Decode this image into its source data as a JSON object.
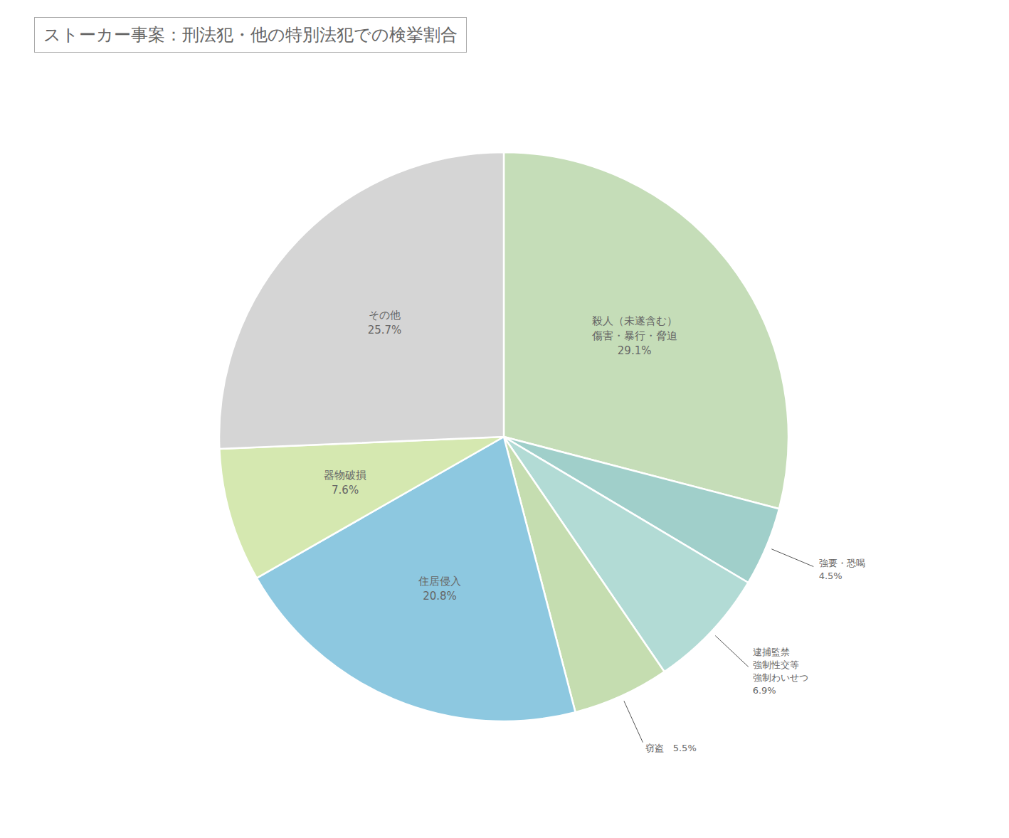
{
  "chart_data": {
    "type": "pie",
    "title": "ストーカー事案：刑法犯・他の特別法犯での検挙割合",
    "categories": [
      "殺人（未遂含む）\n傷害・暴行・脅迫\n29.1%",
      "強要・恐喝\n4.5%",
      "逮捕監禁\n強制性交等\n強制わいせつ\n6.9%",
      "窃盗　5.5%",
      "住居侵入\n20.8%",
      "器物破損\n7.6%",
      "その他\n25.7%"
    ],
    "values": [
      29.1,
      4.5,
      6.9,
      5.5,
      20.8,
      7.6,
      25.7
    ],
    "colors": [
      "#c5ddb8",
      "#a0cfca",
      "#b2dbd5",
      "#c5ddb0",
      "#8dc8e0",
      "#d5e8b0",
      "#d5d5d5"
    ]
  }
}
